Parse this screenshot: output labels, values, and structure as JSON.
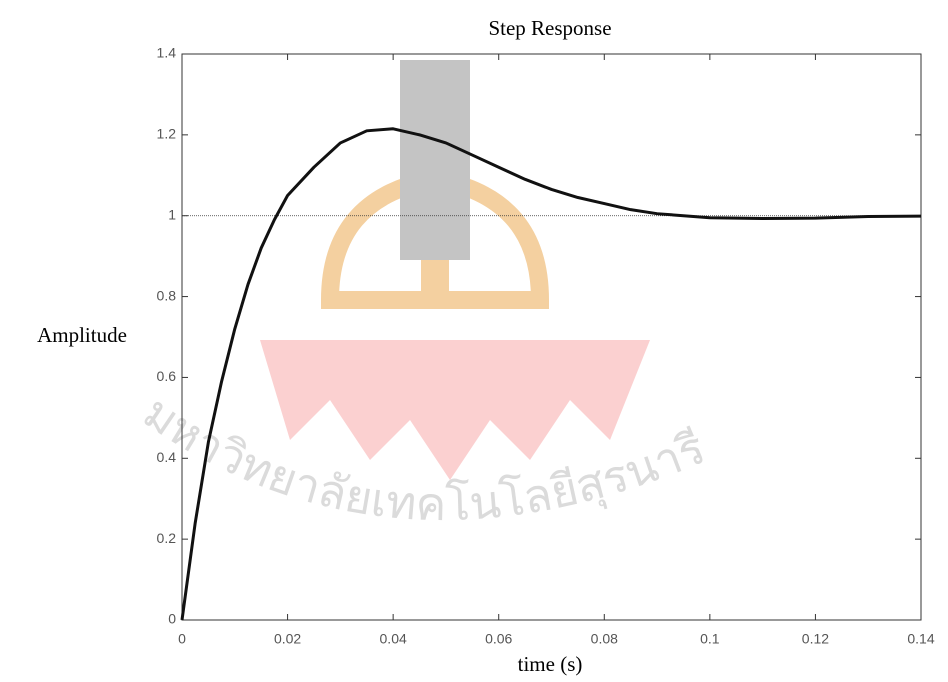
{
  "chart_data": {
    "type": "line",
    "title": "Step Response",
    "x_label": "time (s)",
    "y_label": "Amplitude",
    "watermark": "มหาวิทยาลัยเทคโนโลยีสุรนารี",
    "x": [
      0,
      0.0025,
      0.005,
      0.0075,
      0.01,
      0.0125,
      0.015,
      0.0175,
      0.02,
      0.025,
      0.03,
      0.035,
      0.04,
      0.045,
      0.05,
      0.055,
      0.06,
      0.065,
      0.07,
      0.075,
      0.08,
      0.085,
      0.09,
      0.095,
      0.1,
      0.11,
      0.12,
      0.13,
      0.14
    ],
    "series": [
      {
        "color": "#111111",
        "values": [
          0,
          0.24,
          0.44,
          0.59,
          0.72,
          0.83,
          0.92,
          0.99,
          1.05,
          1.12,
          1.18,
          1.21,
          1.215,
          1.2,
          1.18,
          1.15,
          1.12,
          1.09,
          1.065,
          1.045,
          1.03,
          1.015,
          1.005,
          1.0,
          0.995,
          0.993,
          0.994,
          0.998,
          0.999
        ]
      }
    ],
    "reference_line": 1,
    "xlim": [
      0,
      0.14
    ],
    "ylim": [
      0,
      1.4
    ],
    "xticks": [
      0,
      0.02,
      0.04,
      0.06,
      0.08,
      0.1,
      0.12,
      0.14
    ],
    "yticks": [
      0,
      0.2,
      0.4,
      0.6,
      0.8,
      1,
      1.2,
      1.4
    ]
  }
}
